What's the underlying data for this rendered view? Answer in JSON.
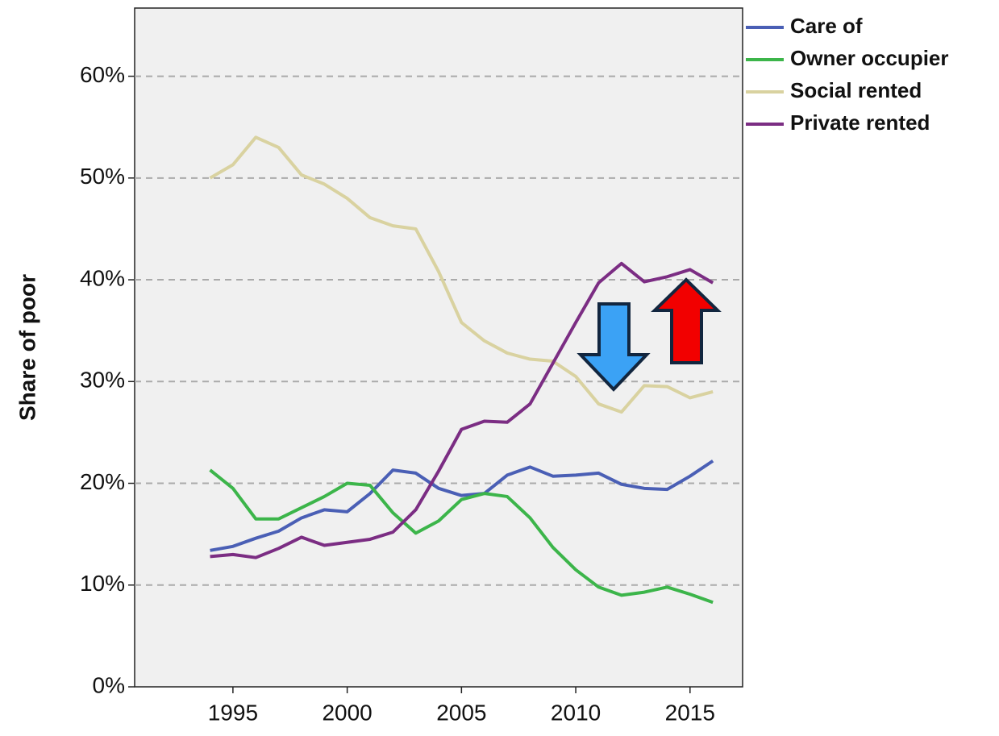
{
  "chart_data": {
    "type": "line",
    "y_label": "Share of poor",
    "x": [
      1994,
      1995,
      1996,
      1997,
      1998,
      1999,
      2000,
      2001,
      2002,
      2003,
      2004,
      2005,
      2006,
      2007,
      2008,
      2009,
      2010,
      2011,
      2012,
      2013,
      2014,
      2015,
      2016
    ],
    "series": [
      {
        "name": "Care of",
        "color": "#4a5fb5",
        "values": [
          13.4,
          13.8,
          14.6,
          15.3,
          16.6,
          17.4,
          17.2,
          19.0,
          21.3,
          21.0,
          19.5,
          18.8,
          19.0,
          20.8,
          21.6,
          20.7,
          20.8,
          21.0,
          19.9,
          19.5,
          19.4,
          20.7,
          22.2
        ]
      },
      {
        "name": "Owner occupier",
        "color": "#3cb54a",
        "values": [
          21.3,
          19.5,
          16.5,
          16.5,
          17.6,
          18.7,
          20.0,
          19.8,
          17.1,
          15.1,
          16.3,
          18.4,
          19.0,
          18.7,
          16.6,
          13.7,
          11.5,
          9.8,
          9.0,
          9.3,
          9.8,
          9.1,
          8.3
        ]
      },
      {
        "name": "Social rented",
        "color": "#d9d2a0",
        "values": [
          50.0,
          51.3,
          54.0,
          53.0,
          50.3,
          49.4,
          48.0,
          46.1,
          45.3,
          45.0,
          40.8,
          35.8,
          34.0,
          32.8,
          32.2,
          32.0,
          30.5,
          27.8,
          27.0,
          29.6,
          29.5,
          28.4,
          29.0
        ]
      },
      {
        "name": "Private rented",
        "color": "#7b2d83",
        "values": [
          12.8,
          13.0,
          12.7,
          13.6,
          14.7,
          13.9,
          14.2,
          14.5,
          15.2,
          17.4,
          21.2,
          25.3,
          26.1,
          26.0,
          27.8,
          31.8,
          35.8,
          39.7,
          41.6,
          39.8,
          40.3,
          41.0,
          39.7
        ]
      }
    ],
    "xlim": [
      1990.7,
      2017.3
    ],
    "xticks": [
      1995,
      2000,
      2005,
      2010,
      2015
    ],
    "ylim": [
      0,
      66.7
    ],
    "yticks": [
      {
        "value": 0,
        "label": "0%"
      },
      {
        "value": 10,
        "label": "10%"
      },
      {
        "value": 20,
        "label": "20%"
      },
      {
        "value": 30,
        "label": "30%"
      },
      {
        "value": 40,
        "label": "40%"
      },
      {
        "value": 50,
        "label": "50%"
      },
      {
        "value": 60,
        "label": "60%"
      }
    ],
    "grid": true,
    "legend": "right"
  }
}
